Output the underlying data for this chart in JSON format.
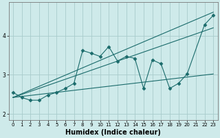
{
  "xlabel": "Humidex (Indice chaleur)",
  "background_color": "#ceeaea",
  "grid_color": "#a8cccc",
  "line_color": "#1a6b6b",
  "xlim": [
    -0.5,
    23.5
  ],
  "ylim": [
    1.85,
    4.85
  ],
  "yticks": [
    2,
    3,
    4
  ],
  "xticks": [
    0,
    1,
    2,
    3,
    4,
    5,
    6,
    7,
    8,
    9,
    10,
    11,
    12,
    13,
    14,
    15,
    16,
    17,
    18,
    19,
    20,
    21,
    22,
    23
  ],
  "series": [
    {
      "x": [
        0,
        1,
        2,
        3,
        4,
        5,
        6,
        7,
        8,
        9,
        10,
        11,
        12,
        13,
        14,
        15,
        16,
        17,
        18,
        19,
        20,
        22,
        23
      ],
      "y": [
        2.55,
        2.42,
        2.35,
        2.35,
        2.48,
        2.55,
        2.65,
        2.78,
        3.62,
        3.55,
        3.47,
        3.72,
        3.35,
        3.47,
        3.42,
        2.65,
        3.38,
        3.28,
        2.65,
        2.78,
        3.02,
        4.28,
        4.52
      ],
      "marker": "D",
      "markersize": 2.5
    },
    {
      "x": [
        0,
        23
      ],
      "y": [
        2.42,
        4.6
      ],
      "marker": null
    },
    {
      "x": [
        0,
        23
      ],
      "y": [
        2.42,
        4.2
      ],
      "marker": null
    },
    {
      "x": [
        0,
        23
      ],
      "y": [
        2.42,
        3.02
      ],
      "marker": null
    }
  ]
}
